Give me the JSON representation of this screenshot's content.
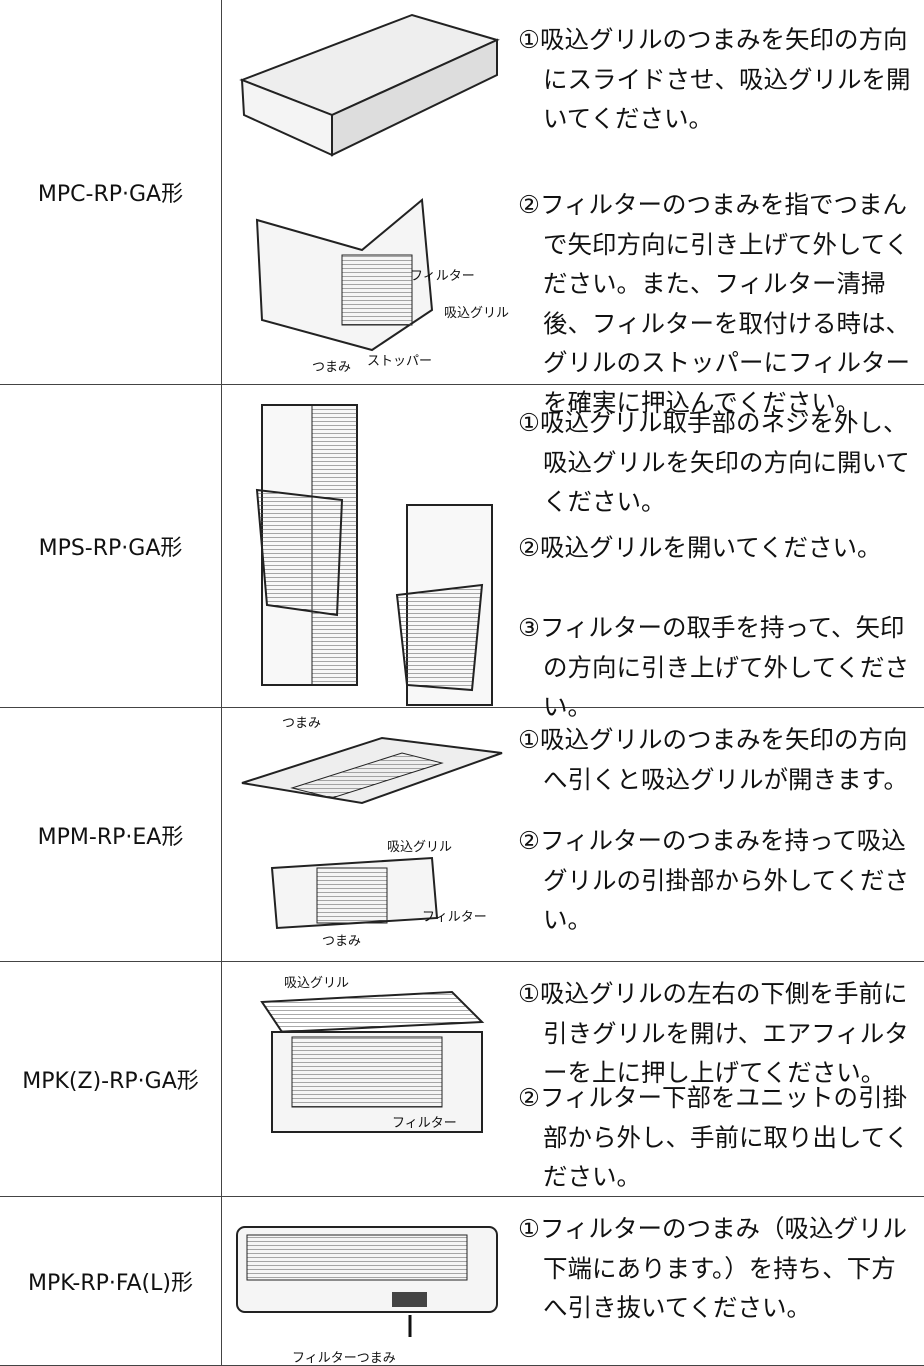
{
  "rows": [
    {
      "model": "MPC-RP·GA形",
      "labels": [
        "フィルター",
        "吸込グリル",
        "ストッパー",
        "つまみ"
      ],
      "steps": [
        "①吸込グリルのつまみを矢印の方向にスライドさせ、吸込グリルを開いてください。",
        "②フィルターのつまみを指でつまんで矢印方向に引き上げて外してください。また、フィルター清掃後、フィルターを取付ける時は、グリルのストッパーにフィルターを確実に押込んでください。"
      ]
    },
    {
      "model": "MPS-RP·GA形",
      "labels": [],
      "steps": [
        "①吸込グリル取手部のネジを外し、吸込グリルを矢印の方向に開いてください。",
        "②吸込グリルを開いてください。",
        "③フィルターの取手を持って、矢印の方向に引き上げて外してください。"
      ]
    },
    {
      "model": "MPM-RP·EA形",
      "labels": [
        "つまみ",
        "吸込グリル",
        "フィルター",
        "つまみ"
      ],
      "steps": [
        "①吸込グリルのつまみを矢印の方向へ引くと吸込グリルが開きます。",
        "②フィルターのつまみを持って吸込グリルの引掛部から外してください。"
      ]
    },
    {
      "model": "MPK(Z)-RP·GA形",
      "labels": [
        "吸込グリル",
        "フィルター"
      ],
      "steps": [
        "①吸込グリルの左右の下側を手前に引きグリルを開け、エアフィルターを上に押し上げてください。",
        "②フィルター下部をユニットの引掛部から外し、手前に取り出してください。"
      ]
    },
    {
      "model": "MPK-RP·FA(L)形",
      "labels": [
        "フィルターつまみ"
      ],
      "steps": [
        "①フィルターのつまみ（吸込グリル下端にあります。）を持ち、下方へ引き抜いてください。"
      ]
    }
  ]
}
